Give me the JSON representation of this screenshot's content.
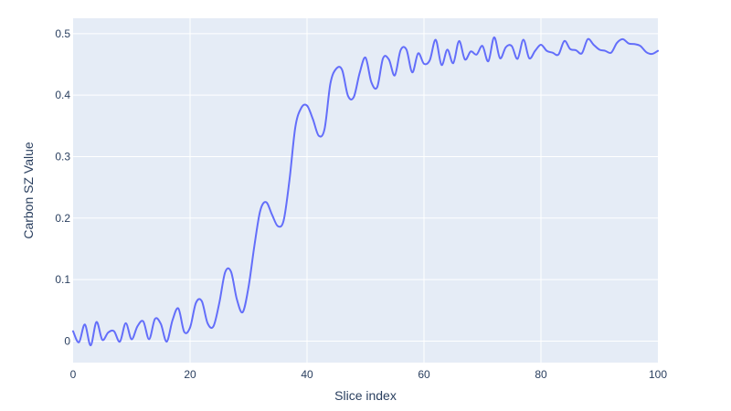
{
  "chart_data": {
    "type": "line",
    "title": "",
    "xlabel": "Slice index",
    "ylabel": "Carbon SZ Value",
    "xlim": [
      0,
      100
    ],
    "ylim": [
      -0.035,
      0.525
    ],
    "x_ticks": [
      0,
      20,
      40,
      60,
      80,
      100
    ],
    "y_ticks": [
      0,
      0.1,
      0.2,
      0.3,
      0.4,
      0.5
    ],
    "x_tick_labels": [
      "0",
      "20",
      "40",
      "60",
      "80",
      "100"
    ],
    "y_tick_labels": [
      "0",
      "0.1",
      "0.2",
      "0.3",
      "0.4",
      "0.5"
    ],
    "grid": true,
    "colors": {
      "plot_bg": "#e5ecf6",
      "grid": "#ffffff",
      "line": "#636efa",
      "text": "#2a3f5f"
    },
    "series": [
      {
        "x": [
          0,
          1,
          2,
          3,
          4,
          5,
          6,
          7,
          8,
          9,
          10,
          11,
          12,
          13,
          14,
          15,
          16,
          17,
          18,
          19,
          20,
          21,
          22,
          23,
          24,
          25,
          26,
          27,
          28,
          29,
          30,
          31,
          32,
          33,
          34,
          35,
          36,
          37,
          38,
          39,
          40,
          41,
          42,
          43,
          44,
          45,
          46,
          47,
          48,
          49,
          50,
          51,
          52,
          53,
          54,
          55,
          56,
          57,
          58,
          59,
          60,
          61,
          62,
          63,
          64,
          65,
          66,
          67,
          68,
          69,
          70,
          71,
          72,
          73,
          74,
          75,
          76,
          77,
          78,
          79,
          80,
          81,
          82,
          83,
          84,
          85,
          86,
          87,
          88,
          89,
          90,
          91,
          92,
          93,
          94,
          95,
          96,
          97,
          98,
          99,
          100
        ],
        "values": [
          0.016,
          -0.002,
          0.027,
          -0.007,
          0.031,
          0.002,
          0.014,
          0.016,
          -0.001,
          0.029,
          0.003,
          0.024,
          0.032,
          0.003,
          0.036,
          0.028,
          -0.001,
          0.034,
          0.053,
          0.015,
          0.022,
          0.062,
          0.065,
          0.029,
          0.024,
          0.062,
          0.112,
          0.113,
          0.068,
          0.047,
          0.088,
          0.155,
          0.212,
          0.226,
          0.206,
          0.187,
          0.196,
          0.262,
          0.348,
          0.379,
          0.383,
          0.361,
          0.334,
          0.345,
          0.419,
          0.443,
          0.441,
          0.399,
          0.397,
          0.436,
          0.461,
          0.421,
          0.413,
          0.46,
          0.458,
          0.432,
          0.473,
          0.474,
          0.437,
          0.468,
          0.451,
          0.457,
          0.49,
          0.449,
          0.474,
          0.452,
          0.488,
          0.458,
          0.471,
          0.466,
          0.48,
          0.455,
          0.494,
          0.46,
          0.478,
          0.48,
          0.459,
          0.49,
          0.46,
          0.472,
          0.482,
          0.472,
          0.469,
          0.466,
          0.488,
          0.475,
          0.473,
          0.468,
          0.491,
          0.482,
          0.474,
          0.472,
          0.469,
          0.485,
          0.491,
          0.484,
          0.483,
          0.48,
          0.47,
          0.467,
          0.472
        ]
      }
    ]
  }
}
